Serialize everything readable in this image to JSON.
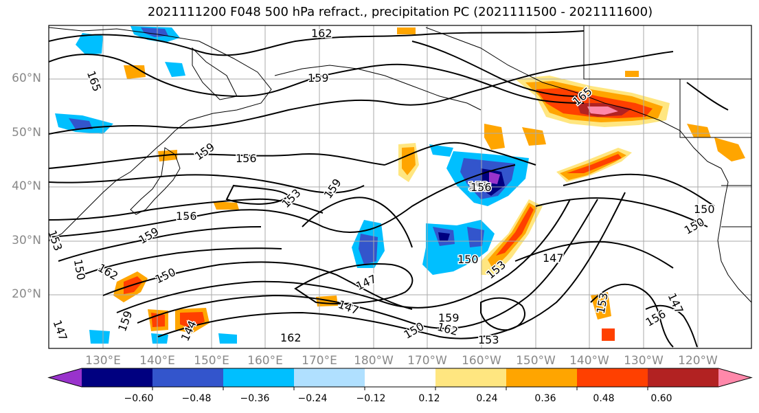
{
  "title": "2021111200 F048 500 hPa refract., precipitation PC (2021111500 - 2021111600)",
  "latitude_labels": [
    "60°N",
    "50°N",
    "40°N",
    "30°N",
    "20°N"
  ],
  "longitude_labels": [
    "130°E",
    "140°E",
    "150°E",
    "160°E",
    "170°E",
    "180°W",
    "170°W",
    "160°W",
    "150°W",
    "140°W",
    "130°W",
    "120°W"
  ],
  "contour_labels": [
    "162",
    "159",
    "165",
    "165",
    "156",
    "159",
    "159",
    "153",
    "156",
    "159",
    "153",
    "159",
    "156",
    "153",
    "150",
    "162",
    "150",
    "147",
    "147",
    "150",
    "153",
    "147",
    "153",
    "147",
    "150",
    "150",
    "159",
    "162",
    "162",
    "153",
    "156",
    "144",
    "159",
    "150",
    "147"
  ],
  "colorbar": {
    "ticks": [
      "−0.60",
      "−0.48",
      "−0.36",
      "−0.24",
      "−0.12",
      "0.12",
      "0.24",
      "0.36",
      "0.48",
      "0.60"
    ],
    "colors": [
      "#9933cc",
      "#000080",
      "#3355cc",
      "#00bfff",
      "#b0e0ff",
      "#ffffff",
      "#ffe680",
      "#ffa500",
      "#ff4000",
      "#b22222",
      "#ff88aa"
    ]
  }
}
